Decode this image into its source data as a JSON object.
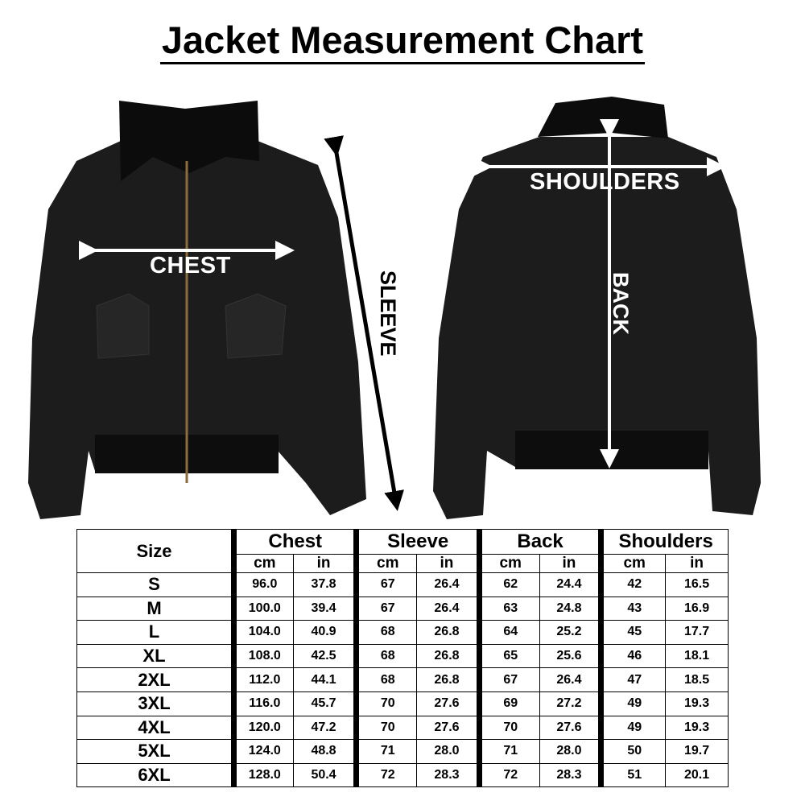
{
  "title": "Jacket Measurement Chart",
  "labels": {
    "chest": "CHEST",
    "sleeve": "SLEEVE",
    "shoulders": "SHOULDERS",
    "back": "BACK"
  },
  "colors": {
    "jacket": "#1a1a1a",
    "fur": "#0e0e0e",
    "arrow": "#ffffff",
    "sleeve_arrow": "#000000"
  },
  "table": {
    "size_header": "Size",
    "groups": [
      "Chest",
      "Sleeve",
      "Back",
      "Shoulders"
    ],
    "units": [
      "cm",
      "in"
    ],
    "rows": [
      [
        "S",
        "96.0",
        "37.8",
        "67",
        "26.4",
        "62",
        "24.4",
        "42",
        "16.5"
      ],
      [
        "M",
        "100.0",
        "39.4",
        "67",
        "26.4",
        "63",
        "24.8",
        "43",
        "16.9"
      ],
      [
        "L",
        "104.0",
        "40.9",
        "68",
        "26.8",
        "64",
        "25.2",
        "45",
        "17.7"
      ],
      [
        "XL",
        "108.0",
        "42.5",
        "68",
        "26.8",
        "65",
        "25.6",
        "46",
        "18.1"
      ],
      [
        "2XL",
        "112.0",
        "44.1",
        "68",
        "26.8",
        "67",
        "26.4",
        "47",
        "18.5"
      ],
      [
        "3XL",
        "116.0",
        "45.7",
        "70",
        "27.6",
        "69",
        "27.2",
        "49",
        "19.3"
      ],
      [
        "4XL",
        "120.0",
        "47.2",
        "70",
        "27.6",
        "70",
        "27.6",
        "49",
        "19.3"
      ],
      [
        "5XL",
        "124.0",
        "48.8",
        "71",
        "28.0",
        "71",
        "28.0",
        "50",
        "19.7"
      ],
      [
        "6XL",
        "128.0",
        "50.4",
        "72",
        "28.3",
        "72",
        "28.3",
        "51",
        "20.1"
      ]
    ]
  }
}
